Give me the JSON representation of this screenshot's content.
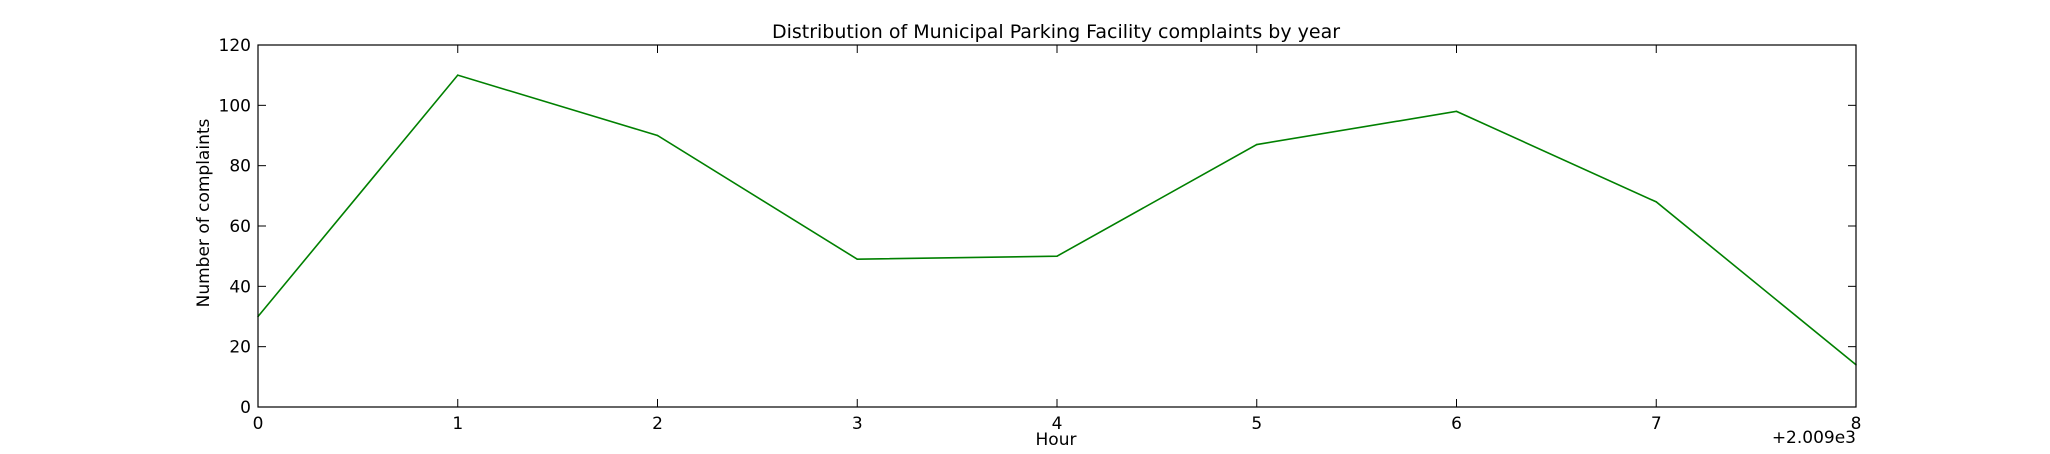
{
  "chart_data": {
    "type": "line",
    "title": "Distribution of  Municipal Parking Facility complaints by year",
    "xlabel": "Hour",
    "ylabel": "Number of complaints",
    "x": [
      0,
      1,
      2,
      3,
      4,
      5,
      6,
      7,
      8
    ],
    "series": [
      {
        "values": [
          30,
          110,
          90,
          49,
          50,
          87,
          98,
          68,
          14
        ],
        "color": "#008000"
      }
    ],
    "xlim": [
      0,
      8
    ],
    "ylim": [
      0,
      120
    ],
    "xticks": [
      "0",
      "1",
      "2",
      "3",
      "4",
      "5",
      "6",
      "7",
      "8"
    ],
    "yticks": [
      "0",
      "20",
      "40",
      "60",
      "80",
      "100",
      "120"
    ],
    "x_offset_label": "+2.009e3",
    "grid": false,
    "legend": "none"
  }
}
